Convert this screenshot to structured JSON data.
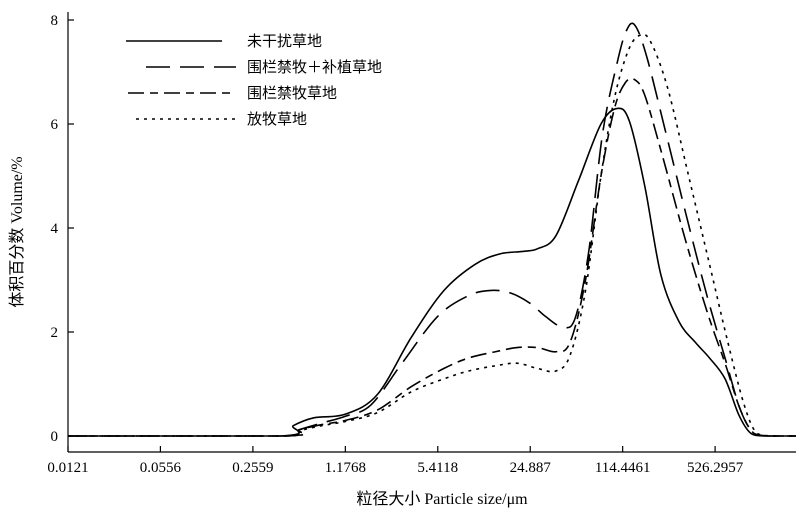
{
  "chart_data": {
    "type": "line",
    "title": "",
    "xlabel": "粒径大小 Particle size/μm",
    "ylabel": "体积百分数 Volume/%",
    "x_scale": "log",
    "xlim": [
      0.0121,
      2000
    ],
    "ylim": [
      0,
      8
    ],
    "x_ticks": [
      0.0121,
      0.0556,
      0.2559,
      1.1768,
      5.4118,
      24.887,
      114.4461,
      526.2957
    ],
    "x_tick_labels": [
      "0.0121",
      "0.0556",
      "0.2559",
      "1.1768",
      "5.4118",
      "24.887",
      "114.4461",
      "526.2957"
    ],
    "y_ticks": [
      0,
      2,
      4,
      6,
      8
    ],
    "y_tick_labels": [
      "0",
      "2",
      "4",
      "6",
      "8"
    ],
    "grid": false,
    "legend_position": "top-left",
    "series": [
      {
        "name": "未干扰草地",
        "dash": "solid",
        "points": [
          [
            0.0121,
            0
          ],
          [
            0.4,
            0
          ],
          [
            0.5,
            0.2
          ],
          [
            0.7,
            0.35
          ],
          [
            1.18,
            0.42
          ],
          [
            2.0,
            0.8
          ],
          [
            3.5,
            1.9
          ],
          [
            6.0,
            2.8
          ],
          [
            10.0,
            3.3
          ],
          [
            15.0,
            3.5
          ],
          [
            22.0,
            3.55
          ],
          [
            28.0,
            3.6
          ],
          [
            38.0,
            3.85
          ],
          [
            55.0,
            4.9
          ],
          [
            80.0,
            6.0
          ],
          [
            105.0,
            6.3
          ],
          [
            128.0,
            6.05
          ],
          [
            165.0,
            4.8
          ],
          [
            215.0,
            3.1
          ],
          [
            290.0,
            2.2
          ],
          [
            380.0,
            1.8
          ],
          [
            480.0,
            1.5
          ],
          [
            620.0,
            1.1
          ],
          [
            780.0,
            0.4
          ],
          [
            950.0,
            0.05
          ],
          [
            1200.0,
            0
          ],
          [
            2000.0,
            0
          ]
        ]
      },
      {
        "name": "围栏禁牧＋补植草地",
        "dash": "long-dash",
        "points": [
          [
            0.0121,
            0
          ],
          [
            0.42,
            0
          ],
          [
            0.55,
            0.12
          ],
          [
            0.8,
            0.25
          ],
          [
            1.18,
            0.38
          ],
          [
            1.8,
            0.6
          ],
          [
            3.0,
            1.4
          ],
          [
            5.4,
            2.3
          ],
          [
            9.0,
            2.7
          ],
          [
            13.0,
            2.8
          ],
          [
            18.0,
            2.75
          ],
          [
            24.9,
            2.55
          ],
          [
            32.0,
            2.3
          ],
          [
            42.0,
            2.1
          ],
          [
            52.0,
            2.25
          ],
          [
            65.0,
            3.5
          ],
          [
            82.0,
            5.8
          ],
          [
            105.0,
            7.2
          ],
          [
            122.0,
            7.8
          ],
          [
            140.0,
            7.9
          ],
          [
            170.0,
            7.3
          ],
          [
            230.0,
            5.9
          ],
          [
            330.0,
            4.2
          ],
          [
            460.0,
            2.7
          ],
          [
            620.0,
            1.5
          ],
          [
            800.0,
            0.5
          ],
          [
            1000.0,
            0.05
          ],
          [
            1300.0,
            0
          ],
          [
            2000.0,
            0
          ]
        ]
      },
      {
        "name": "围栏禁牧草地",
        "dash": "dash-dot",
        "points": [
          [
            0.0121,
            0
          ],
          [
            0.42,
            0
          ],
          [
            0.55,
            0.12
          ],
          [
            0.8,
            0.22
          ],
          [
            1.18,
            0.3
          ],
          [
            2.0,
            0.5
          ],
          [
            3.5,
            0.95
          ],
          [
            6.0,
            1.3
          ],
          [
            9.0,
            1.5
          ],
          [
            14.0,
            1.62
          ],
          [
            20.0,
            1.7
          ],
          [
            28.0,
            1.7
          ],
          [
            38.0,
            1.62
          ],
          [
            48.0,
            1.8
          ],
          [
            62.0,
            3.0
          ],
          [
            80.0,
            5.0
          ],
          [
            100.0,
            6.3
          ],
          [
            120.0,
            6.8
          ],
          [
            140.0,
            6.85
          ],
          [
            165.0,
            6.55
          ],
          [
            220.0,
            5.4
          ],
          [
            320.0,
            3.8
          ],
          [
            460.0,
            2.4
          ],
          [
            620.0,
            1.4
          ],
          [
            800.0,
            0.5
          ],
          [
            1000.0,
            0.05
          ],
          [
            1300.0,
            0
          ],
          [
            2000.0,
            0
          ]
        ]
      },
      {
        "name": "放牧草地",
        "dash": "dotted",
        "points": [
          [
            0.0121,
            0
          ],
          [
            0.42,
            0
          ],
          [
            0.55,
            0.1
          ],
          [
            0.8,
            0.2
          ],
          [
            1.18,
            0.28
          ],
          [
            2.0,
            0.45
          ],
          [
            3.5,
            0.85
          ],
          [
            6.0,
            1.1
          ],
          [
            9.0,
            1.25
          ],
          [
            14.0,
            1.35
          ],
          [
            20.0,
            1.4
          ],
          [
            28.0,
            1.3
          ],
          [
            38.0,
            1.25
          ],
          [
            48.0,
            1.55
          ],
          [
            62.0,
            2.8
          ],
          [
            80.0,
            5.0
          ],
          [
            100.0,
            6.5
          ],
          [
            125.0,
            7.4
          ],
          [
            150.0,
            7.7
          ],
          [
            180.0,
            7.6
          ],
          [
            240.0,
            6.7
          ],
          [
            340.0,
            5.0
          ],
          [
            480.0,
            3.3
          ],
          [
            650.0,
            1.8
          ],
          [
            850.0,
            0.6
          ],
          [
            1050.0,
            0.05
          ],
          [
            1400.0,
            0
          ],
          [
            2000.0,
            0
          ]
        ]
      }
    ]
  }
}
